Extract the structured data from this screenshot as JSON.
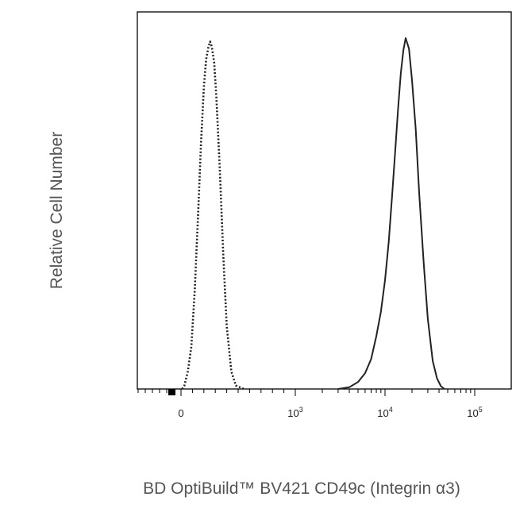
{
  "chart_data": {
    "type": "line",
    "title": "",
    "xlabel": "BD OptiBuild™ BV421 CD49c (Integrin α3)",
    "ylabel": "Relative Cell Number",
    "x_scale": "biexponential",
    "x_tick_labels": [
      {
        "base": "0",
        "exp": ""
      },
      {
        "base": "10",
        "exp": "3"
      },
      {
        "base": "10",
        "exp": "4"
      },
      {
        "base": "10",
        "exp": "5"
      }
    ],
    "ylim": [
      0,
      1
    ],
    "grid": false,
    "legend": "none",
    "series": [
      {
        "style": "dotted",
        "color": "#222222",
        "points": [
          [
            10,
            0.0
          ],
          [
            30,
            0.01
          ],
          [
            60,
            0.05
          ],
          [
            90,
            0.12
          ],
          [
            120,
            0.28
          ],
          [
            150,
            0.5
          ],
          [
            175,
            0.7
          ],
          [
            200,
            0.86
          ],
          [
            220,
            0.94
          ],
          [
            240,
            0.975
          ],
          [
            255,
            0.99
          ],
          [
            270,
            0.975
          ],
          [
            290,
            0.93
          ],
          [
            310,
            0.83
          ],
          [
            340,
            0.62
          ],
          [
            370,
            0.38
          ],
          [
            400,
            0.18
          ],
          [
            440,
            0.05
          ],
          [
            480,
            0.01
          ],
          [
            550,
            0.0
          ]
        ]
      },
      {
        "style": "solid",
        "color": "#222222",
        "points": [
          [
            3000,
            0.0
          ],
          [
            4000,
            0.005
          ],
          [
            5000,
            0.02
          ],
          [
            6000,
            0.045
          ],
          [
            7000,
            0.085
          ],
          [
            8000,
            0.15
          ],
          [
            9000,
            0.22
          ],
          [
            10000,
            0.31
          ],
          [
            11000,
            0.42
          ],
          [
            12000,
            0.55
          ],
          [
            13000,
            0.68
          ],
          [
            14000,
            0.8
          ],
          [
            15000,
            0.9
          ],
          [
            16000,
            0.965
          ],
          [
            17000,
            1.0
          ],
          [
            18500,
            0.97
          ],
          [
            20000,
            0.88
          ],
          [
            22000,
            0.74
          ],
          [
            24000,
            0.56
          ],
          [
            27000,
            0.36
          ],
          [
            30000,
            0.2
          ],
          [
            34000,
            0.08
          ],
          [
            38000,
            0.03
          ],
          [
            42000,
            0.008
          ],
          [
            46000,
            0.0
          ]
        ]
      }
    ]
  }
}
